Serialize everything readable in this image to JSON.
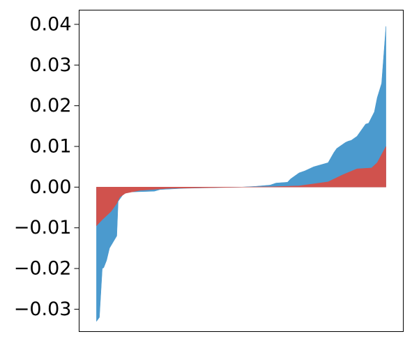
{
  "chart_data": {
    "type": "area",
    "title": "",
    "xlabel": "",
    "ylabel": "",
    "ylim": [
      -0.0355,
      0.0435
    ],
    "xlim": [
      -0.06,
      1.06
    ],
    "grid": false,
    "legend": "none",
    "yticks": [
      "0.04",
      "0.03",
      "0.02",
      "0.01",
      "0.00",
      "−0.01",
      "−0.02",
      "−0.03"
    ],
    "ytick_values": [
      0.04,
      0.03,
      0.02,
      0.01,
      0.0,
      -0.01,
      -0.02,
      -0.03
    ],
    "series": [
      {
        "color": "#4b9ace",
        "x": [
          0,
          0.01,
          0.02,
          0.025,
          0.035,
          0.045,
          0.07,
          0.075,
          0.09,
          0.1,
          0.12,
          0.2,
          0.22,
          0.3,
          0.5,
          0.55,
          0.6,
          0.62,
          0.66,
          0.67,
          0.7,
          0.72,
          0.75,
          0.8,
          0.82,
          0.83,
          0.86,
          0.87,
          0.88,
          0.9,
          0.91,
          0.93,
          0.94,
          0.96,
          0.97,
          0.985,
          1.0
        ],
        "y": [
          -0.033,
          -0.032,
          -0.02,
          -0.0198,
          -0.018,
          -0.015,
          -0.012,
          -0.0035,
          -0.002,
          -0.0015,
          -0.0012,
          -0.001,
          -0.0006,
          -0.0003,
          0.0,
          0.0002,
          0.0005,
          0.001,
          0.0012,
          0.002,
          0.0035,
          0.004,
          0.005,
          0.006,
          0.0085,
          0.0095,
          0.011,
          0.0113,
          0.0115,
          0.0125,
          0.0135,
          0.0155,
          0.0157,
          0.0185,
          0.022,
          0.0255,
          0.0395
        ]
      },
      {
        "color": "#d0524d",
        "x": [
          0,
          0.02,
          0.05,
          0.07,
          0.08,
          0.1,
          0.15,
          0.25,
          0.5,
          0.6,
          0.7,
          0.72,
          0.8,
          0.85,
          0.9,
          0.95,
          0.97,
          1.0
        ],
        "y": [
          -0.0095,
          -0.008,
          -0.006,
          -0.004,
          -0.0025,
          -0.0015,
          -0.0008,
          -0.0003,
          0.0,
          0.0001,
          0.0003,
          0.0005,
          0.0013,
          0.003,
          0.0045,
          0.0047,
          0.006,
          0.01
        ]
      }
    ]
  }
}
